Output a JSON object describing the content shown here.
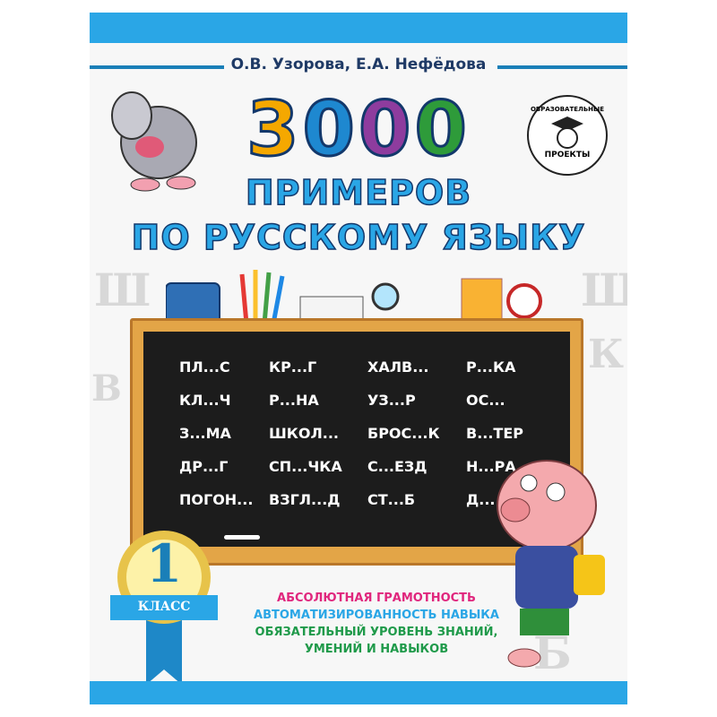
{
  "cover": {
    "authors": "О.В. Узорова, Е.А. Нефёдова",
    "number": [
      "3",
      "0",
      "0",
      "0"
    ],
    "number_colors": [
      "#f5a800",
      "#1e88d0",
      "#8e3c9e",
      "#2e9b3a"
    ],
    "title_line1": "ПРИМЕРОВ",
    "title_line2": "ПО РУССКОМУ ЯЗЫКУ",
    "publisher_logo": {
      "top": "ОБРАЗОВАТЕЛЬНЫЕ",
      "bottom": "ПРОЕКТЫ"
    },
    "board_words": [
      "ПЛ...С",
      "КР...Г",
      "ХАЛВ...",
      "Р...КА",
      "КЛ...Ч",
      "Р...НА",
      "УЗ...Р",
      "ОС...",
      "З...МА",
      "ШКОЛ...",
      "БРОС...К",
      "В...ТЕР",
      "ДР...Г",
      "СП...ЧКА",
      "С...ЕЗД",
      "Н...РА",
      "ПОГОН...",
      "ВЗГЛ...Д",
      "СТ...Б",
      "Д..."
    ],
    "grade_number": "1",
    "grade_label": "КЛАСС",
    "taglines": [
      {
        "text": "АБСОЛЮТНАЯ ГРАМОТНОСТЬ",
        "color": "#e0267d"
      },
      {
        "text": "АВТОМАТИЗИРОВАННОСТЬ НАВЫКА",
        "color": "#2aa6e6"
      },
      {
        "text": "ОБЯЗАТЕЛЬНЫЙ УРОВЕНЬ ЗНАНИЙ,",
        "color": "#1f9a4a"
      },
      {
        "text": "УМЕНИЙ И НАВЫКОВ",
        "color": "#1f9a4a"
      }
    ],
    "accent": "#2aa6e6"
  }
}
